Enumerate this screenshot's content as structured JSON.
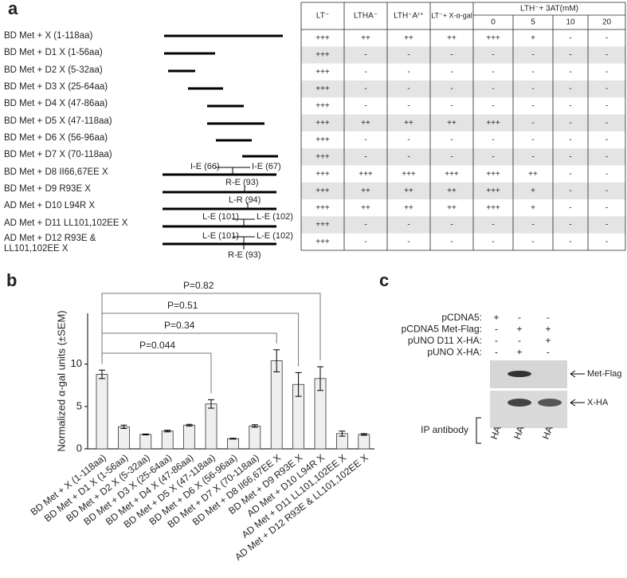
{
  "panel_a": {
    "panel_label": "a",
    "header": {
      "columns": [
        "LT⁻",
        "LTHA⁻",
        "LTH⁻Aʳ⁺",
        "LT⁻+ X-α-gal"
      ],
      "group": "LTH⁻+ 3AT(mM)",
      "subcolumns": [
        "0",
        "5",
        "10",
        "20"
      ]
    },
    "rows": [
      {
        "label": "BD Met +  X (1-118aa)",
        "cells": [
          "+++",
          "++",
          "++",
          "++",
          "+++",
          "+",
          "-",
          "-"
        ]
      },
      {
        "label": "BD Met + D1 X (1-56aa)",
        "cells": [
          "+++",
          "-",
          "-",
          "-",
          "-",
          "-",
          "-",
          "-"
        ]
      },
      {
        "label": "BD Met + D2 X (5-32aa)",
        "cells": [
          "+++",
          "-",
          "-",
          "-",
          "-",
          "-",
          "-",
          "-"
        ]
      },
      {
        "label": "BD Met  + D3 X (25-64aa)",
        "cells": [
          "+++",
          "-",
          "-",
          "-",
          "-",
          "-",
          "-",
          "-"
        ]
      },
      {
        "label": "BD Met  + D4 X (47-86aa)",
        "cells": [
          "+++",
          "-",
          "-",
          "-",
          "-",
          "-",
          "-",
          "-"
        ]
      },
      {
        "label": "BD Met  + D5 X (47-118aa)",
        "cells": [
          "+++",
          "++",
          "++",
          "++",
          "+++",
          "-",
          "-",
          "-"
        ]
      },
      {
        "label": "BD Met  + D6 X (56-96aa)",
        "cells": [
          "+++",
          "-",
          "-",
          "-",
          "-",
          "-",
          "-",
          "-"
        ]
      },
      {
        "label": "BD Met  + D7 X (70-118aa)",
        "cells": [
          "+++",
          "-",
          "-",
          "-",
          "-",
          "-",
          "-",
          "-"
        ]
      },
      {
        "label": "BD Met  + D8 II66,67EE X",
        "cells": [
          "+++",
          "+++",
          "+++",
          "+++",
          "+++",
          "++",
          "-",
          "-"
        ],
        "annotations": [
          "I-E (66)",
          "I-E (67)"
        ]
      },
      {
        "label": "BD Met  + D9 R93E X",
        "cells": [
          "+++",
          "++",
          "++",
          "++",
          "+++",
          "+",
          "-",
          "-"
        ],
        "annotations": [
          "R-E (93)"
        ]
      },
      {
        "label": "AD Met  + D10 L94R X",
        "cells": [
          "+++",
          "++",
          "++",
          "++",
          "+++",
          "+",
          "-",
          "-"
        ],
        "annotations": [
          "L-R (94)"
        ]
      },
      {
        "label": "AD Met + D11 LL101,102EE X",
        "cells": [
          "+++",
          "-",
          "-",
          "-",
          "-",
          "-",
          "-",
          "-"
        ],
        "annotations": [
          "L-E (101)",
          "L-E (102)"
        ]
      },
      {
        "label": "AD Met  + D12 R93E & LL101,102EE X",
        "cells": [
          "+++",
          "-",
          "-",
          "-",
          "-",
          "-",
          "-",
          "-"
        ],
        "annotations": [
          "L-E (101)",
          "L-E (102)",
          "R-E (93)"
        ]
      }
    ]
  },
  "chart_data": {
    "type": "bar",
    "panel_label": "b",
    "y_label": "Normalized α-gal units (±SEM)",
    "categories": [
      "BD Met + X (1-118aa)",
      "BD Met + D1 X (1-56aa)",
      "BD Met + D2 X (5-32aa)",
      "BD Met + D3 X (25-64aa)",
      "BD Met + D4 X (47-86aa)",
      "BD Met + D5 X (47-118aa)",
      "BD Met + D6 X (56-96aa)",
      "BD Met + D7 X (70-118aa)",
      "BD Met + D8 II66,67EE X",
      "BD Met + D9 R93E X",
      "AD Met + D10 L94R X",
      "AD Met + D11 LL101,102EE X",
      "AD Met + D12 R93E & LL101,102EE X"
    ],
    "values": [
      8.8,
      2.6,
      1.7,
      2.1,
      2.8,
      5.3,
      1.2,
      2.7,
      10.4,
      7.6,
      8.3,
      1.8,
      1.7
    ],
    "errors": [
      0.5,
      0.2,
      0.05,
      0.1,
      0.1,
      0.5,
      0.05,
      0.15,
      1.3,
      1.4,
      1.4,
      0.3,
      0.1
    ],
    "color": "#efefef",
    "ylim": [
      0,
      16
    ],
    "yticks": [
      0,
      5,
      10
    ],
    "annotations": [
      "P=0.044",
      "P=0.34",
      "P=0.51",
      "P=0.82"
    ]
  },
  "panel_c": {
    "panel_label": "c",
    "rows": [
      {
        "label": "pCDNA5:",
        "signs": [
          "+",
          "-",
          "-"
        ]
      },
      {
        "label": "pCDNA5 Met-Flag:",
        "signs": [
          "-",
          "+",
          "+"
        ]
      },
      {
        "label": "pUNO D11 X-HA:",
        "signs": [
          "-",
          "-",
          "+"
        ]
      },
      {
        "label": "pUNO X-HA:",
        "signs": [
          "-",
          "+",
          "-"
        ]
      }
    ],
    "blot_labels": [
      "Met-Flag",
      "X-HA"
    ],
    "ip_label": "IP antibody",
    "ip_lanes": [
      "HA",
      "HA",
      "HA"
    ]
  }
}
